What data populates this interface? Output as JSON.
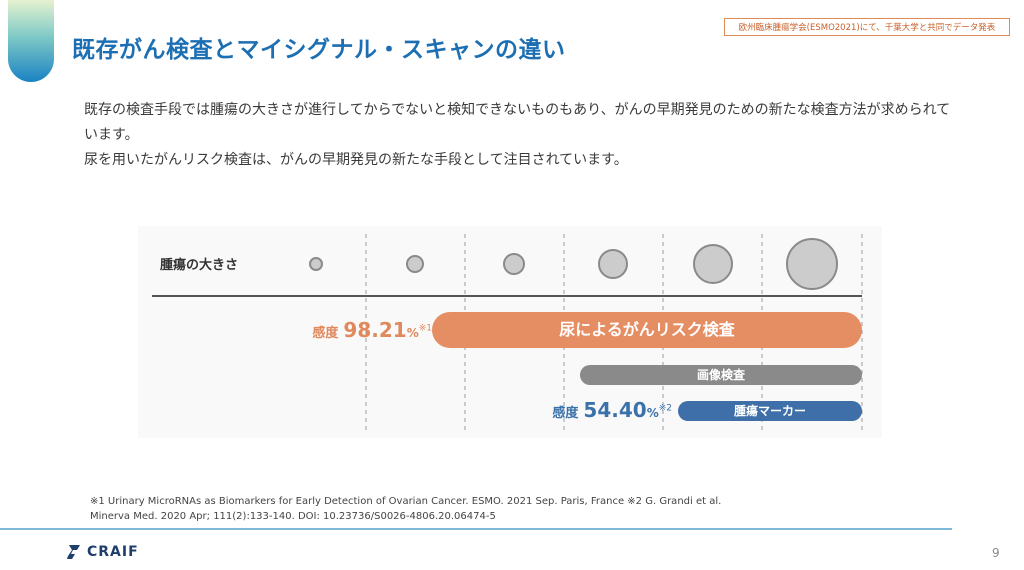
{
  "header": {
    "title": "既存がん検査とマイシグナル・スキャンの違い",
    "badge": "欧州臨床腫瘍学会(ESMO2021)にて、千葉大学と共同でデータ発表"
  },
  "intro": {
    "line1": "既存の検査手段では腫瘍の大きさが進行してからでないと検知できないものもあり、がんの早期発見のための新たな検査方法が求められています。",
    "line2": "尿を用いたがんリスク検査は、がんの早期発見の新たな手段として注目されています。"
  },
  "diagram": {
    "size_label": "腫瘍の大きさ",
    "tumor_stages": 6,
    "tumor_color": "#cccccc",
    "bars": {
      "urine": {
        "label": "尿によるがんリスク検査",
        "color": "#e58d63"
      },
      "imaging": {
        "label": "画像検査",
        "color": "#8a8a8a"
      },
      "marker": {
        "label": "腫瘍マーカー",
        "color": "#3e6fa8"
      }
    },
    "sensitivity_urine": {
      "prefix": "感度",
      "value": "98.21",
      "unit": "%",
      "note": "※1"
    },
    "sensitivity_marker": {
      "prefix": "感度",
      "value": "54.40",
      "unit": "%",
      "note": "※2"
    }
  },
  "footnote": {
    "line1": "※1 Urinary MicroRNAs as Biomarkers for Early Detection of Ovarian Cancer. ESMO. 2021 Sep. Paris, France ※2 G. Grandi et al.",
    "line2": "Minerva Med. 2020 Apr; 111(2):133-140. DOI: 10.23736/S0026-4806.20.06474-5"
  },
  "footer": {
    "logo_text": "CRAIF",
    "page_number": "9"
  }
}
